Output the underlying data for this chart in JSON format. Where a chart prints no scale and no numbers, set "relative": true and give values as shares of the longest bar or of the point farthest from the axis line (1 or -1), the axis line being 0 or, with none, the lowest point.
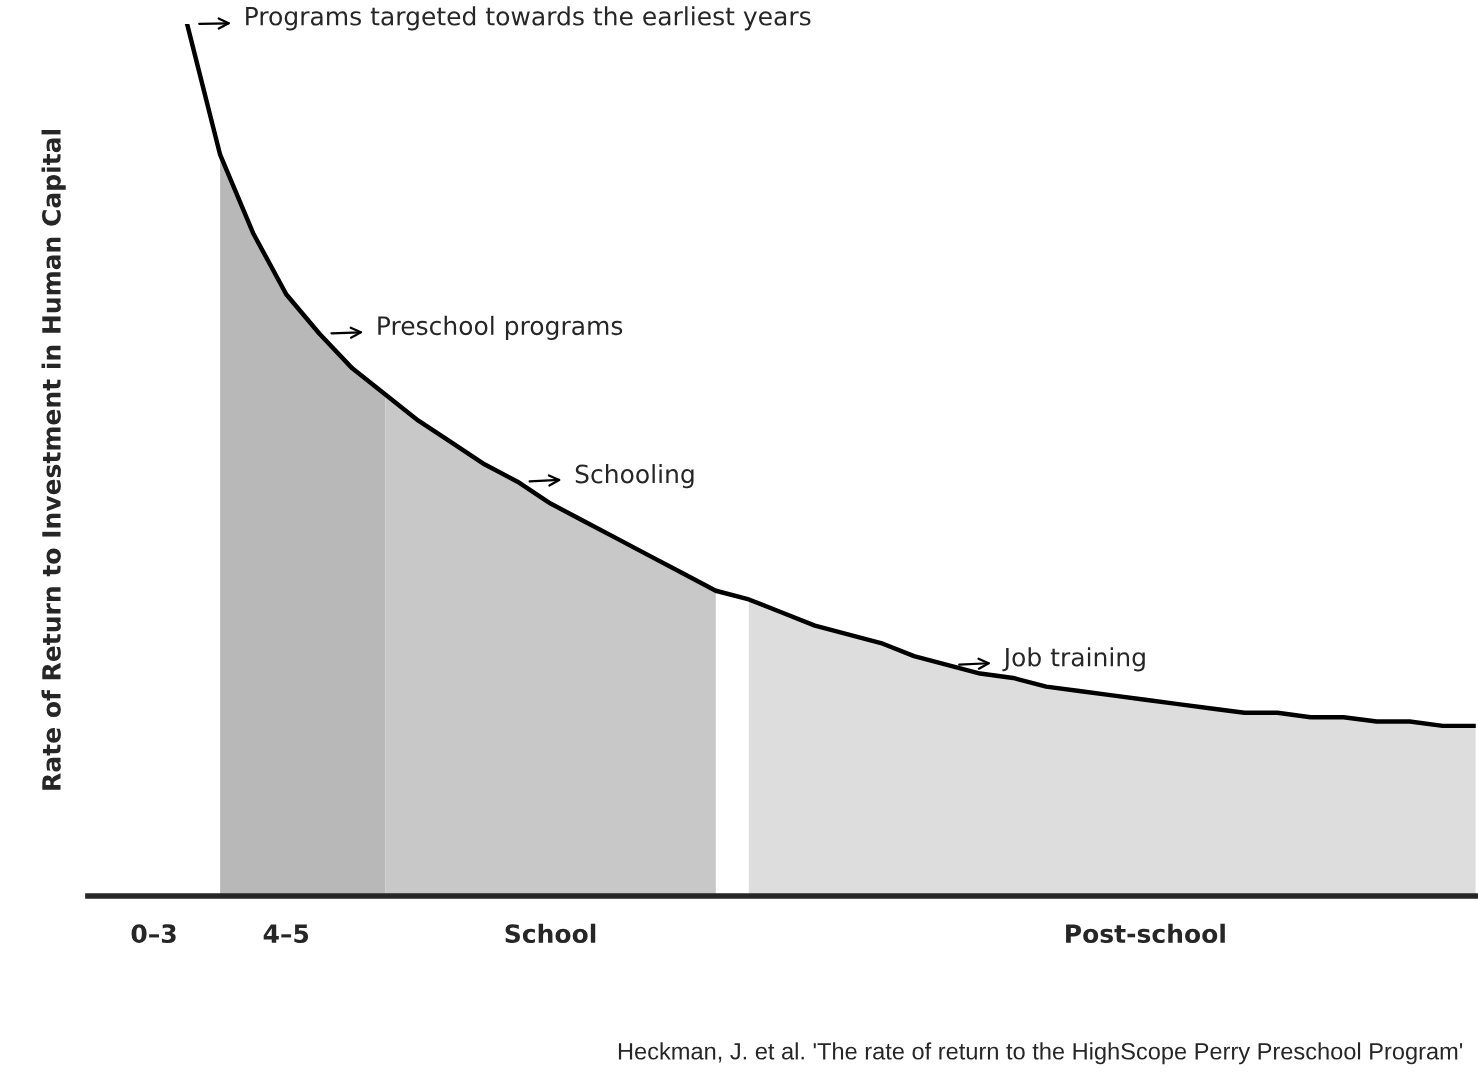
{
  "chart_data": {
    "type": "line",
    "relative": true,
    "ylabel": "Rate of Return to Investment in Human Capital",
    "categories": [
      null,
      null,
      "0–3",
      null,
      null,
      null,
      "4–5",
      null,
      null,
      null,
      null,
      null,
      null,
      null,
      "School",
      null,
      null,
      null,
      null,
      null,
      null,
      null,
      null,
      null,
      null,
      null,
      null,
      null,
      null,
      null,
      null,
      null,
      "Post-school",
      null,
      null,
      null,
      null,
      null,
      null,
      null,
      null,
      null,
      null
    ],
    "series": [
      {
        "type": "area",
        "color": "#b8b8b8",
        "values": [
          null,
          null,
          null,
          null,
          0.85,
          0.76,
          0.69,
          0.645,
          0.605,
          0.575,
          null,
          null,
          null,
          null,
          null,
          null,
          null,
          null,
          null,
          null,
          null,
          null,
          null,
          null,
          null,
          null,
          null,
          null,
          null,
          null,
          null,
          null,
          null,
          null,
          null,
          null,
          null,
          null,
          null,
          null,
          null,
          null,
          null
        ]
      },
      {
        "type": "area",
        "color": "#c8c8c8",
        "values": [
          null,
          null,
          null,
          null,
          null,
          null,
          null,
          null,
          null,
          0.575,
          0.545,
          0.52,
          0.495,
          0.475,
          0.45,
          0.43,
          0.41,
          0.39,
          0.37,
          0.35,
          null,
          null,
          null,
          null,
          null,
          null,
          null,
          null,
          null,
          null,
          null,
          null,
          null,
          null,
          null,
          null,
          null,
          null,
          null,
          null,
          null,
          null,
          null
        ]
      },
      {
        "type": "area",
        "color": "#dddddd",
        "values": [
          null,
          null,
          null,
          null,
          null,
          null,
          null,
          null,
          null,
          null,
          null,
          null,
          null,
          null,
          null,
          null,
          null,
          null,
          null,
          null,
          0.34,
          0.325,
          0.31,
          0.3,
          0.29,
          0.275,
          0.265,
          0.255,
          0.25,
          0.24,
          0.235,
          0.23,
          0.225,
          0.22,
          0.215,
          0.21,
          0.21,
          0.205,
          0.205,
          0.2,
          0.2,
          0.195,
          0.195
        ]
      },
      {
        "color": "#000000",
        "values": [
          null,
          null,
          null,
          1.0,
          0.85,
          0.76,
          0.69,
          0.645,
          0.605,
          0.575,
          0.545,
          0.52,
          0.495,
          0.475,
          0.45,
          0.43,
          0.41,
          0.39,
          0.37,
          0.35,
          0.34,
          0.325,
          0.31,
          0.3,
          0.29,
          0.275,
          0.265,
          0.255,
          0.25,
          0.24,
          0.235,
          0.23,
          0.225,
          0.22,
          0.215,
          0.21,
          0.21,
          0.205,
          0.205,
          0.2,
          0.2,
          0.195,
          0.195
        ]
      }
    ],
    "annotations": [
      "Programs targeted towards the earliest years",
      "Preschool programs",
      "Schooling",
      "Job training",
      "Heckman, J. et al. 'The rate of return to the HighScope Perry Preschool Program'"
    ],
    "grid": false,
    "legend": false
  }
}
